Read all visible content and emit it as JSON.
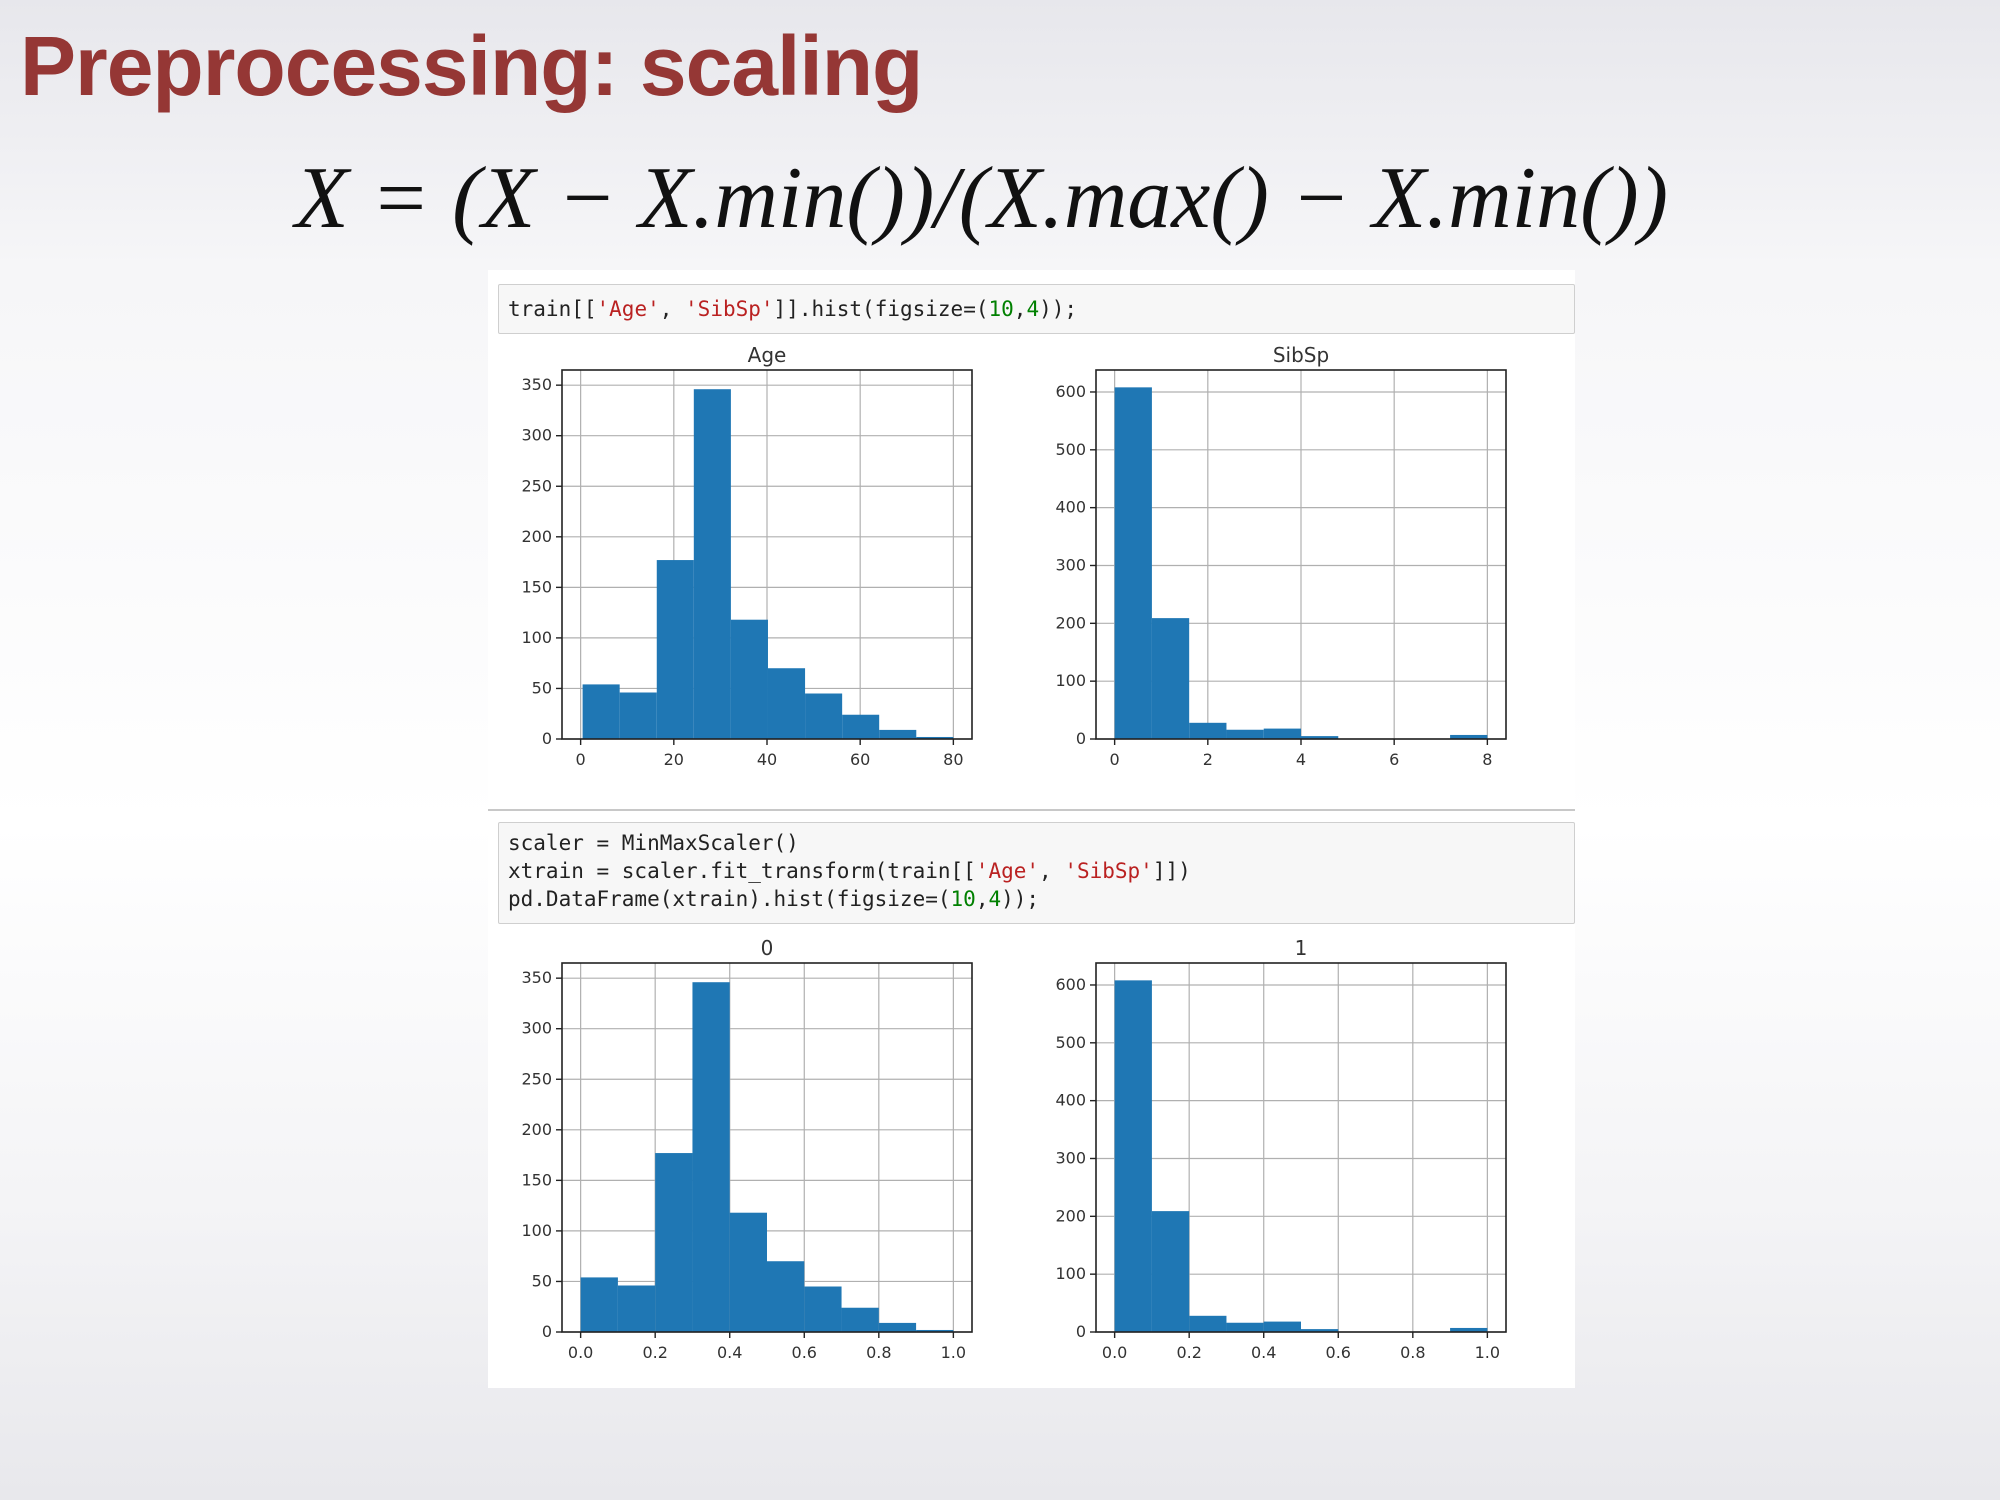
{
  "slide": {
    "title": "Preprocessing: scaling",
    "formula": "X = (X − X.min())/(X.max() − X.min())"
  },
  "cells": {
    "cell1": {
      "t1": "train[[",
      "s1": "'Age'",
      "t2": ", ",
      "s2": "'SibSp'",
      "t3": "]].hist(figsize=(",
      "n1": "10",
      "t4": ",",
      "n2": "4",
      "t5": "));"
    },
    "cell2": {
      "line1": "scaler = MinMaxScaler()",
      "line2_a": "xtrain = scaler.fit_transform(train[[",
      "line2_s1": "'Age'",
      "line2_b": ", ",
      "line2_s2": "'SibSp'",
      "line2_c": "]])",
      "line3_a": "pd.DataFrame(xtrain).hist(figsize=(",
      "line3_n1": "10",
      "line3_b": ",",
      "line3_n2": "4",
      "line3_c": "));"
    }
  },
  "colors": {
    "bar": "#1f77b4",
    "grid": "#b0b0b0",
    "title": "#953735"
  },
  "chart_data": [
    {
      "type": "bar",
      "title": "Age",
      "bin_edges": [
        0.42,
        8.38,
        16.34,
        24.29,
        32.25,
        40.21,
        48.17,
        56.13,
        64.08,
        72.04,
        80.0
      ],
      "values": [
        54,
        46,
        177,
        346,
        118,
        70,
        45,
        24,
        9,
        2
      ],
      "xlim": [
        -4,
        84
      ],
      "ylim": [
        0,
        365
      ],
      "xticks": [
        0,
        20,
        40,
        60,
        80
      ],
      "xtick_labels": [
        "0",
        "20",
        "40",
        "60",
        "80"
      ],
      "yticks": [
        0,
        50,
        100,
        150,
        200,
        250,
        300,
        350
      ],
      "ytick_labels": [
        "0",
        "50",
        "100",
        "150",
        "200",
        "250",
        "300",
        "350"
      ],
      "grid": true
    },
    {
      "type": "bar",
      "title": "SibSp",
      "bin_edges": [
        0,
        0.8,
        1.6,
        2.4,
        3.2,
        4.0,
        4.8,
        5.6,
        6.4,
        7.2,
        8.0
      ],
      "values": [
        608,
        209,
        28,
        16,
        18,
        5,
        0,
        0,
        0,
        7
      ],
      "xlim": [
        -0.4,
        8.4
      ],
      "ylim": [
        0,
        638
      ],
      "xticks": [
        0,
        2,
        4,
        6,
        8
      ],
      "xtick_labels": [
        "0",
        "2",
        "4",
        "6",
        "8"
      ],
      "yticks": [
        0,
        100,
        200,
        300,
        400,
        500,
        600
      ],
      "ytick_labels": [
        "0",
        "100",
        "200",
        "300",
        "400",
        "500",
        "600"
      ],
      "grid": true
    },
    {
      "type": "bar",
      "title": "0",
      "bin_edges": [
        0,
        0.1,
        0.2,
        0.3,
        0.4,
        0.5,
        0.6,
        0.7,
        0.8,
        0.9,
        1.0
      ],
      "values": [
        54,
        46,
        177,
        346,
        118,
        70,
        45,
        24,
        9,
        2
      ],
      "xlim": [
        -0.05,
        1.05
      ],
      "ylim": [
        0,
        365
      ],
      "xticks": [
        0,
        0.2,
        0.4,
        0.6,
        0.8,
        1.0
      ],
      "xtick_labels": [
        "0.0",
        "0.2",
        "0.4",
        "0.6",
        "0.8",
        "1.0"
      ],
      "yticks": [
        0,
        50,
        100,
        150,
        200,
        250,
        300,
        350
      ],
      "ytick_labels": [
        "0",
        "50",
        "100",
        "150",
        "200",
        "250",
        "300",
        "350"
      ],
      "grid": true
    },
    {
      "type": "bar",
      "title": "1",
      "bin_edges": [
        0,
        0.1,
        0.2,
        0.3,
        0.4,
        0.5,
        0.6,
        0.7,
        0.8,
        0.9,
        1.0
      ],
      "values": [
        608,
        209,
        28,
        16,
        18,
        5,
        0,
        0,
        0,
        7
      ],
      "xlim": [
        -0.05,
        1.05
      ],
      "ylim": [
        0,
        638
      ],
      "xticks": [
        0,
        0.2,
        0.4,
        0.6,
        0.8,
        1.0
      ],
      "xtick_labels": [
        "0.0",
        "0.2",
        "0.4",
        "0.6",
        "0.8",
        "1.0"
      ],
      "yticks": [
        0,
        100,
        200,
        300,
        400,
        500,
        600
      ],
      "ytick_labels": [
        "0",
        "100",
        "200",
        "300",
        "400",
        "500",
        "600"
      ],
      "grid": true
    }
  ]
}
